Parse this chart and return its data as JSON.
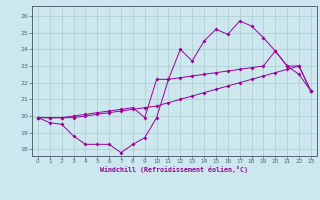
{
  "title": "",
  "xlabel": "Windchill (Refroidissement éolien,°C)",
  "bg_color": "#cce8ee",
  "line_color": "#990099",
  "grid_color": "#aacccc",
  "axis_color": "#556677",
  "x_ticks": [
    0,
    1,
    2,
    3,
    4,
    5,
    6,
    7,
    8,
    9,
    10,
    11,
    12,
    13,
    14,
    15,
    16,
    17,
    18,
    19,
    20,
    21,
    22,
    23
  ],
  "y_ticks": [
    18,
    19,
    20,
    21,
    22,
    23,
    24,
    25,
    26
  ],
  "ylim": [
    17.6,
    26.6
  ],
  "xlim": [
    -0.5,
    23.5
  ],
  "line1_y": [
    19.9,
    19.6,
    19.5,
    18.8,
    18.3,
    18.3,
    18.3,
    17.8,
    18.3,
    18.7,
    19.9,
    22.2,
    24.0,
    23.3,
    24.5,
    25.2,
    24.9,
    25.7,
    25.4,
    24.7,
    23.9,
    23.0,
    22.5,
    21.5
  ],
  "line2_y": [
    19.9,
    19.9,
    19.9,
    20.0,
    20.1,
    20.2,
    20.3,
    20.4,
    20.5,
    19.9,
    22.2,
    22.2,
    22.3,
    22.4,
    22.5,
    22.6,
    22.7,
    22.8,
    22.9,
    23.0,
    23.9,
    23.0,
    23.0,
    21.5
  ],
  "line3_y": [
    19.9,
    19.9,
    19.9,
    19.9,
    20.0,
    20.1,
    20.2,
    20.3,
    20.4,
    20.5,
    20.6,
    20.8,
    21.0,
    21.2,
    21.4,
    21.6,
    21.8,
    22.0,
    22.2,
    22.4,
    22.6,
    22.8,
    23.0,
    21.5
  ]
}
